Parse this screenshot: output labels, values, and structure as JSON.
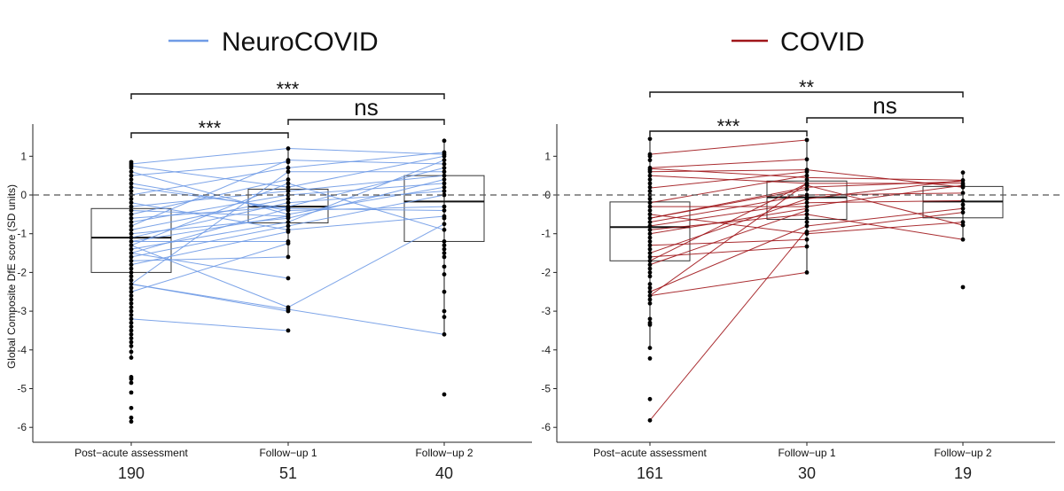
{
  "chart_data": [
    {
      "type": "box+paired-lines",
      "legend": "NeuroCOVID",
      "color": "#6f9be6",
      "ylabel": "Global Composite DfE score (SD units)",
      "ylim": [
        -6.3,
        1.9
      ],
      "yticks": [
        1,
        0,
        -1,
        -2,
        -3,
        -4,
        -5,
        -6
      ],
      "ytick_labels": [
        "1",
        "0",
        "-1",
        "-2",
        "-3",
        "-4",
        "-5",
        "-6"
      ],
      "reference_line": 0,
      "categories": [
        "Post−acute assessment",
        "Follow−up 1",
        "Follow−up 2"
      ],
      "n": [
        "190",
        "51",
        "40"
      ],
      "boxes": [
        {
          "q1": -2.0,
          "median": -1.1,
          "q3": -0.35,
          "whisker_low": -4.2,
          "whisker_high": 0.85
        },
        {
          "q1": -0.72,
          "median": -0.3,
          "q3": 0.15,
          "whisker_low": -1.6,
          "whisker_high": 1.2
        },
        {
          "q1": -1.2,
          "median": -0.17,
          "q3": 0.5,
          "whisker_low": -3.6,
          "whisker_high": 1.4
        }
      ],
      "points": [
        [
          0.85,
          0.8,
          0.75,
          0.7,
          0.6,
          0.5,
          0.4,
          0.3,
          0.2,
          0.1,
          0,
          -0.1,
          -0.2,
          -0.3,
          -0.4,
          -0.5,
          -0.6,
          -0.7,
          -0.8,
          -0.9,
          -1.0,
          -1.1,
          -1.2,
          -1.3,
          -1.4,
          -1.5,
          -1.6,
          -1.7,
          -1.8,
          -1.9,
          -2.0,
          -2.1,
          -2.2,
          -2.3,
          -2.4,
          -2.5,
          -2.6,
          -2.7,
          -2.8,
          -2.9,
          -3.0,
          -3.1,
          -3.2,
          -3.3,
          -3.4,
          -3.5,
          -3.6,
          -3.7,
          -3.8,
          -3.9,
          -4.05,
          -4.2,
          -4.7,
          -4.75,
          -4.85,
          -5.1,
          -5.5,
          -5.75,
          -5.85
        ],
        [
          1.2,
          0.9,
          0.85,
          0.7,
          0.6,
          0.4,
          0.3,
          0.2,
          0.1,
          0,
          -0.1,
          -0.2,
          -0.3,
          -0.35,
          -0.4,
          -0.5,
          -0.55,
          -0.6,
          -0.7,
          -0.8,
          -0.9,
          -0.95,
          -1.2,
          -1.25,
          -1.6,
          -2.15,
          -2.9,
          -2.95,
          -3.0,
          -3.5
        ],
        [
          1.4,
          1.1,
          1.05,
          1.0,
          0.9,
          0.8,
          0.7,
          0.6,
          0.5,
          0.4,
          0.3,
          0.2,
          0.1,
          0,
          -0.3,
          -0.4,
          -0.55,
          -0.6,
          -0.75,
          -0.9,
          -1.2,
          -1.3,
          -1.4,
          -1.5,
          -1.6,
          -1.85,
          -2.05,
          -2.5,
          -3.0,
          -3.15,
          -3.6,
          -5.15
        ]
      ],
      "paired_segments": [
        {
          "from": 0,
          "to": 1,
          "pairs": [
            [
              0.8,
              1.2
            ],
            [
              0.75,
              0.2
            ],
            [
              0.6,
              -0.5
            ],
            [
              0.5,
              0.85
            ],
            [
              0.3,
              -0.4
            ],
            [
              0,
              0.7
            ],
            [
              -0.2,
              -0.9
            ],
            [
              -0.3,
              0.1
            ],
            [
              -0.5,
              0.4
            ],
            [
              -0.6,
              -0.3
            ],
            [
              -0.7,
              0
            ],
            [
              -0.9,
              -0.1
            ],
            [
              -1.0,
              -0.6
            ],
            [
              -1.1,
              -0.2
            ],
            [
              -1.2,
              -0.55
            ],
            [
              -1.3,
              0.3
            ],
            [
              -1.4,
              -0.7
            ],
            [
              -1.5,
              -0.35
            ],
            [
              -1.6,
              -0.8
            ],
            [
              -1.7,
              -1.6
            ],
            [
              -1.8,
              -0.95
            ],
            [
              -2.3,
              0.6
            ],
            [
              -2.5,
              -1.25
            ],
            [
              -1.5,
              -2.15
            ],
            [
              -1.3,
              -2.9
            ],
            [
              -3.2,
              -3.5
            ],
            [
              -2.3,
              -3.0
            ],
            [
              -1.2,
              -1.2
            ],
            [
              -0.8,
              0.9
            ],
            [
              0.2,
              -0.35
            ],
            [
              -0.4,
              -0.55
            ]
          ]
        },
        {
          "from": 1,
          "to": 2,
          "pairs": [
            [
              1.2,
              1.05
            ],
            [
              0.9,
              0.8
            ],
            [
              0.7,
              1.1
            ],
            [
              0.6,
              0.6
            ],
            [
              0.2,
              1.0
            ],
            [
              0.1,
              0.5
            ],
            [
              0,
              0.3
            ],
            [
              -0.2,
              0.1
            ],
            [
              -0.3,
              0.7
            ],
            [
              -0.4,
              -0.3
            ],
            [
              -0.5,
              0.2
            ],
            [
              -0.6,
              0.4
            ],
            [
              -0.8,
              0
            ],
            [
              -0.9,
              -0.55
            ],
            [
              -2.9,
              -0.75
            ],
            [
              0.3,
              -0.9
            ],
            [
              -0.35,
              -0.4
            ],
            [
              -0.7,
              0.9
            ]
          ]
        },
        {
          "from": 0,
          "to": 2,
          "pairs": [
            [
              -2.3,
              -3.6
            ]
          ]
        }
      ],
      "comparisons": [
        {
          "from": 0,
          "to": 1,
          "label": "***",
          "level": 0
        },
        {
          "from": 1,
          "to": 2,
          "label": "ns",
          "level": 1
        },
        {
          "from": 0,
          "to": 2,
          "label": "***",
          "level": 2
        }
      ]
    },
    {
      "type": "box+paired-lines",
      "legend": "COVID",
      "color": "#a0161a",
      "ylim": [
        -6.3,
        1.9
      ],
      "yticks": [
        1,
        0,
        -1,
        -2,
        -3,
        -4,
        -5,
        -6
      ],
      "ytick_labels": [
        "1",
        "0",
        "-1",
        "-2",
        "-3",
        "-4",
        "-5",
        "-6"
      ],
      "reference_line": 0,
      "categories": [
        "Post−acute assessment",
        "Follow−up 1",
        "Follow−up 2"
      ],
      "n": [
        "161",
        "30",
        "19"
      ],
      "boxes": [
        {
          "q1": -1.7,
          "median": -0.83,
          "q3": -0.18,
          "whisker_low": -3.95,
          "whisker_high": 1.45
        },
        {
          "q1": -0.63,
          "median": -0.06,
          "q3": 0.36,
          "whisker_low": -2.0,
          "whisker_high": 1.42
        },
        {
          "q1": -0.59,
          "median": -0.17,
          "q3": 0.22,
          "whisker_low": -1.15,
          "whisker_high": 0.58
        }
      ],
      "points": [
        [
          1.45,
          1.05,
          1.0,
          0.9,
          0.7,
          0.65,
          0.6,
          0.5,
          0.4,
          0.3,
          0.2,
          0.1,
          0,
          -0.1,
          -0.2,
          -0.3,
          -0.4,
          -0.5,
          -0.6,
          -0.7,
          -0.8,
          -0.9,
          -1.0,
          -1.1,
          -1.2,
          -1.3,
          -1.4,
          -1.5,
          -1.6,
          -1.7,
          -1.8,
          -1.9,
          -2.0,
          -2.1,
          -2.3,
          -2.4,
          -2.5,
          -2.6,
          -2.7,
          -2.8,
          -3.2,
          -3.3,
          -3.35,
          -3.95,
          -4.22,
          -5.27,
          -5.82
        ],
        [
          1.42,
          0.92,
          0.65,
          0.6,
          0.5,
          0.4,
          0.3,
          0.25,
          0.15,
          0,
          -0.1,
          -0.2,
          -0.3,
          -0.4,
          -0.5,
          -0.6,
          -0.7,
          -0.8,
          -0.95,
          -1.0,
          -1.15,
          -1.33,
          -2.0
        ],
        [
          0.58,
          0.38,
          0.3,
          0.25,
          0.2,
          0.05,
          -0.15,
          -0.25,
          -0.35,
          -0.45,
          -0.7,
          -0.78,
          -1.15,
          -2.38
        ]
      ],
      "paired_segments": [
        {
          "from": 0,
          "to": 1,
          "pairs": [
            [
              1.05,
              1.42
            ],
            [
              0.7,
              0.92
            ],
            [
              0.68,
              0.45
            ],
            [
              0.6,
              0.65
            ],
            [
              0.5,
              0.3
            ],
            [
              0.18,
              0.6
            ],
            [
              -0.2,
              0.5
            ],
            [
              -0.3,
              -0.3
            ],
            [
              -0.5,
              -1.0
            ],
            [
              -0.6,
              0.2
            ],
            [
              -0.7,
              0
            ],
            [
              -0.8,
              -0.2
            ],
            [
              -0.9,
              -0.5
            ],
            [
              -1.0,
              -0.35
            ],
            [
              -1.3,
              -1.15
            ],
            [
              -1.5,
              -0.1
            ],
            [
              -1.6,
              -1.33
            ],
            [
              -1.7,
              0.3
            ],
            [
              -1.8,
              -0.4
            ],
            [
              -2.6,
              -2.0
            ],
            [
              -2.6,
              0.3
            ],
            [
              -2.5,
              -0.8
            ],
            [
              -5.82,
              -0.9
            ],
            [
              -0.6,
              0.15
            ]
          ]
        },
        {
          "from": 1,
          "to": 2,
          "pairs": [
            [
              0.45,
              0.38
            ],
            [
              0.3,
              0.3
            ],
            [
              0.25,
              -0.78
            ],
            [
              0.2,
              0.35
            ],
            [
              0.65,
              0.2
            ],
            [
              -0.3,
              0.25
            ],
            [
              -0.5,
              -1.15
            ],
            [
              -1.0,
              -0.7
            ],
            [
              -0.2,
              -0.15
            ],
            [
              0,
              0.05
            ],
            [
              -0.8,
              -0.35
            ],
            [
              -0.95,
              -0.45
            ],
            [
              -0.1,
              0.38
            ]
          ]
        }
      ],
      "comparisons": [
        {
          "from": 0,
          "to": 1,
          "label": "***",
          "level": 0
        },
        {
          "from": 1,
          "to": 2,
          "label": "ns",
          "level": 1
        },
        {
          "from": 0,
          "to": 2,
          "label": "**",
          "level": 2
        }
      ]
    }
  ]
}
